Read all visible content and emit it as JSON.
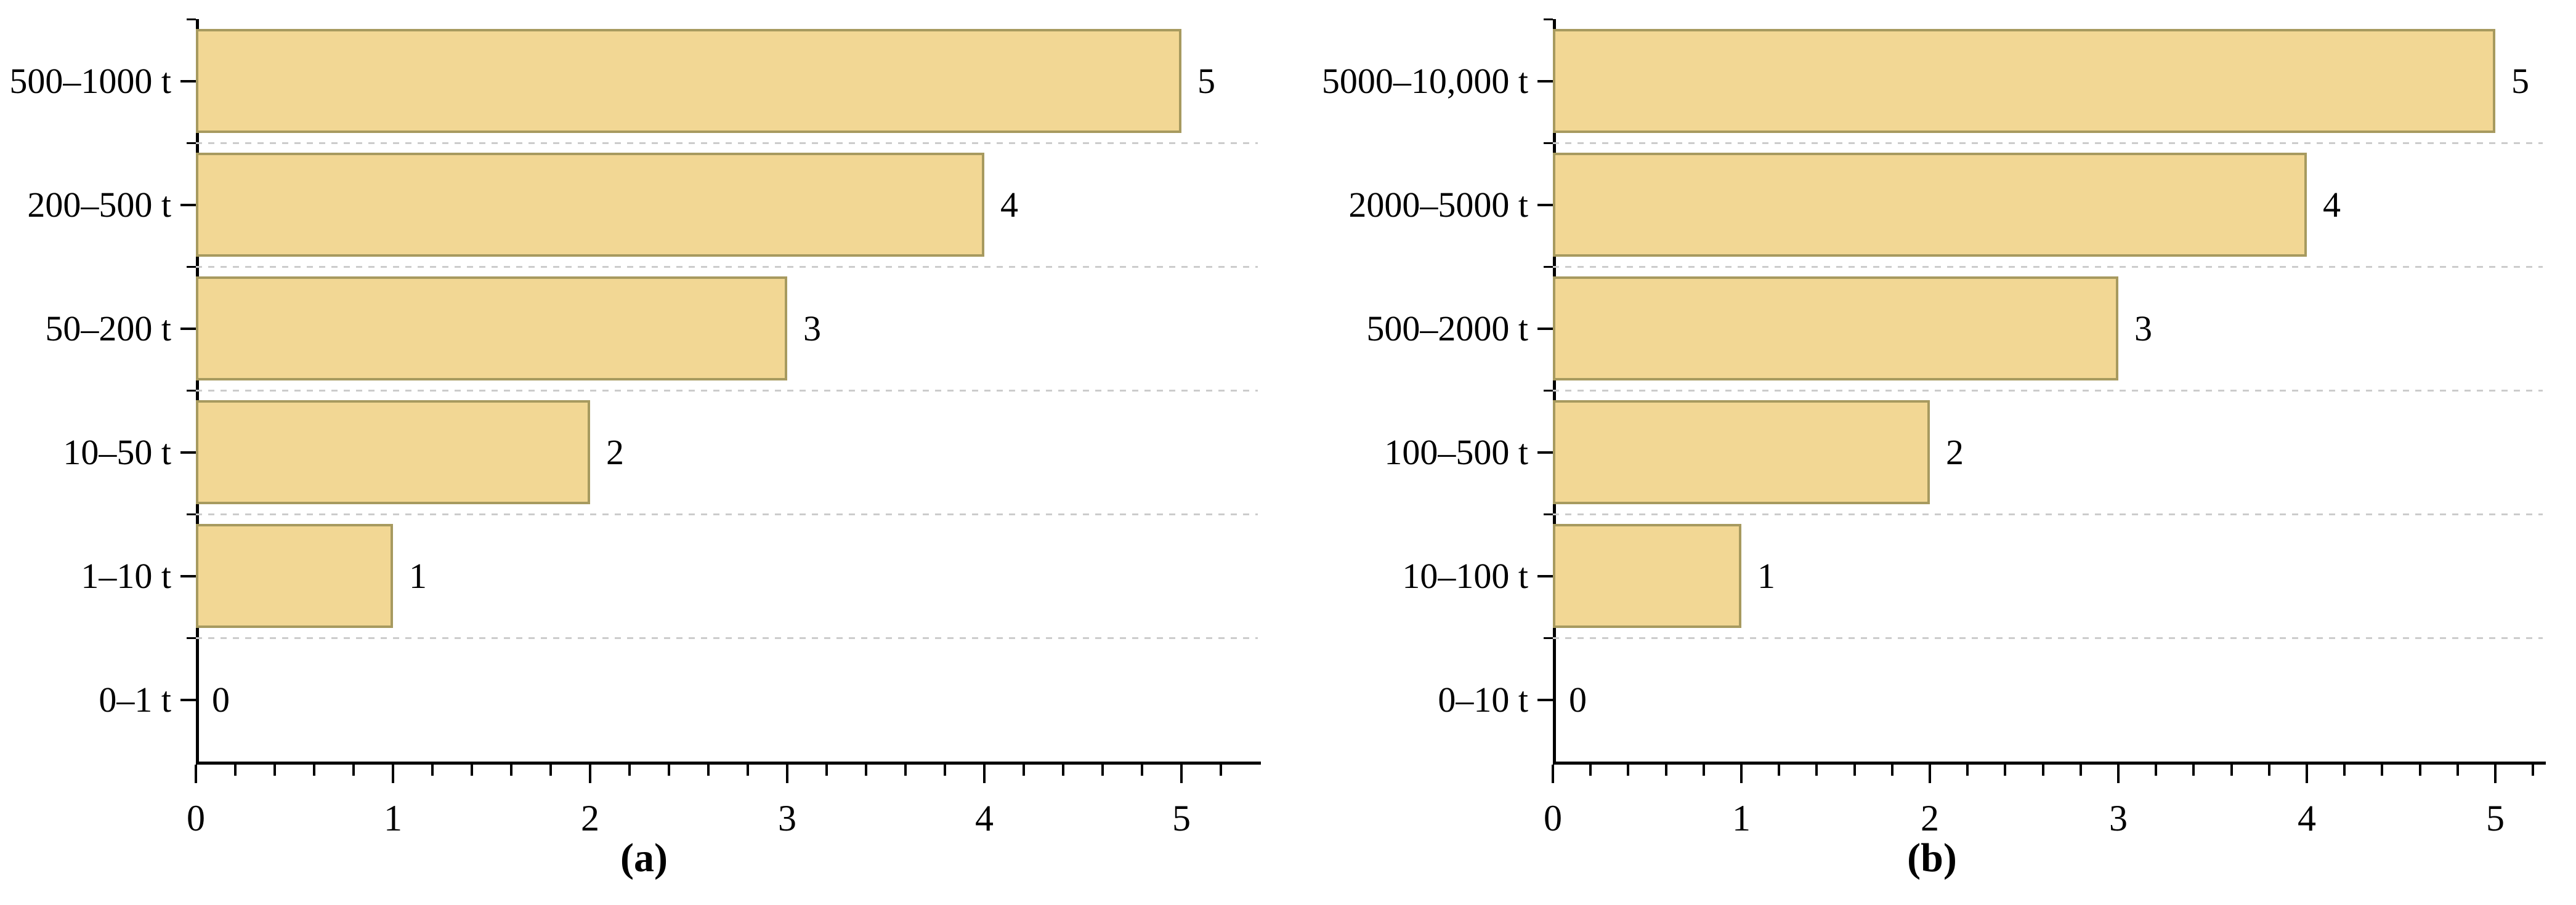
{
  "figure": {
    "background": "#FFFFFF",
    "style": {
      "bar_fill": "#F2D794",
      "bar_border": "#A79A5F",
      "gridline_color": "#CCCCCC",
      "axis_color": "#000000",
      "text_color": "#000000"
    }
  },
  "chart_data": [
    {
      "type": "bar",
      "orientation": "horizontal",
      "caption": "(a)",
      "title": "",
      "xlabel": "",
      "ylabel": "",
      "categories": [
        "500–1000 t",
        "200–500 t",
        "50–200 t",
        "10–50 t",
        "1–10 t",
        "0–1 t"
      ],
      "values": [
        5,
        4,
        3,
        2,
        1,
        0
      ],
      "value_labels": [
        "5",
        "4",
        "3",
        "2",
        "1",
        "0"
      ],
      "x_major_ticks": [
        0,
        1,
        2,
        3,
        4,
        5
      ],
      "x_tick_labels": [
        "0",
        "1",
        "2",
        "3",
        "4",
        "5"
      ],
      "x_minor_tick_step": 0.2,
      "xlim": [
        0,
        5.4
      ],
      "grid": "dashed horizontal separators between category bands",
      "legend": "none",
      "bar_fill": "#F2D794",
      "bar_border": "#A79A5F",
      "gridline_color": "#CCCCCC"
    },
    {
      "type": "bar",
      "orientation": "horizontal",
      "caption": "(b)",
      "title": "",
      "xlabel": "",
      "ylabel": "",
      "categories": [
        "5000–10,000 t",
        "2000–5000 t",
        "500–2000 t",
        "100–500 t",
        "10–100 t",
        "0–10 t"
      ],
      "values": [
        5,
        4,
        3,
        2,
        1,
        0
      ],
      "value_labels": [
        "5",
        "4",
        "3",
        "2",
        "1",
        "0"
      ],
      "x_major_ticks": [
        0,
        1,
        2,
        3,
        4,
        5
      ],
      "x_tick_labels": [
        "0",
        "1",
        "2",
        "3",
        "4",
        "5"
      ],
      "x_minor_tick_step": 0.2,
      "xlim": [
        0,
        5.3
      ],
      "grid": "dashed horizontal separators between category bands",
      "legend": "none",
      "bar_fill": "#F2D794",
      "bar_border": "#A79A5F",
      "gridline_color": "#CCCCCC"
    }
  ]
}
